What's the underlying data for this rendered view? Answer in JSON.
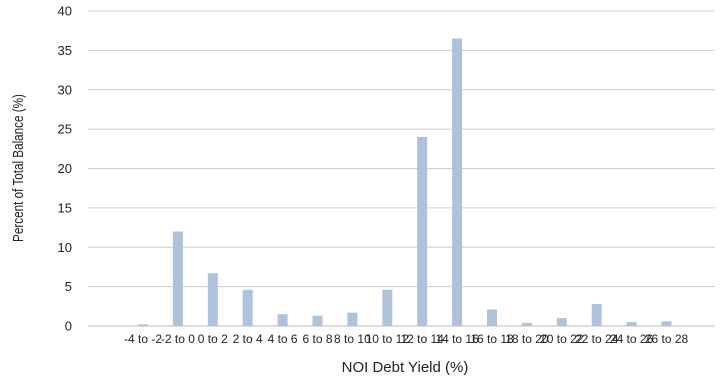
{
  "chart_data": {
    "type": "bar",
    "categories": [
      "-4 to -2",
      "-2 to 0",
      "0 to 2",
      "2 to 4",
      "4 to 6",
      "6 to 8",
      "8 to 10",
      "10 to 12",
      "12 to 14",
      "14 to 16",
      "16 to 18",
      "18 to 20",
      "20 to 22",
      "22 to 24",
      "24 to 26",
      "26 to 28"
    ],
    "values": [
      0.2,
      12.0,
      6.7,
      4.6,
      1.5,
      1.3,
      1.7,
      4.6,
      24.0,
      36.5,
      2.1,
      0.4,
      1.0,
      2.8,
      0.5,
      0.6
    ],
    "xlabel": "NOI Debt Yield (%)",
    "ylabel": "Percent of Total Balance (%)",
    "ylim": [
      0,
      40
    ],
    "yticks": [
      0,
      5,
      10,
      15,
      20,
      25,
      30,
      35,
      40
    ],
    "grid": true,
    "bar_color": "#aec2db"
  }
}
